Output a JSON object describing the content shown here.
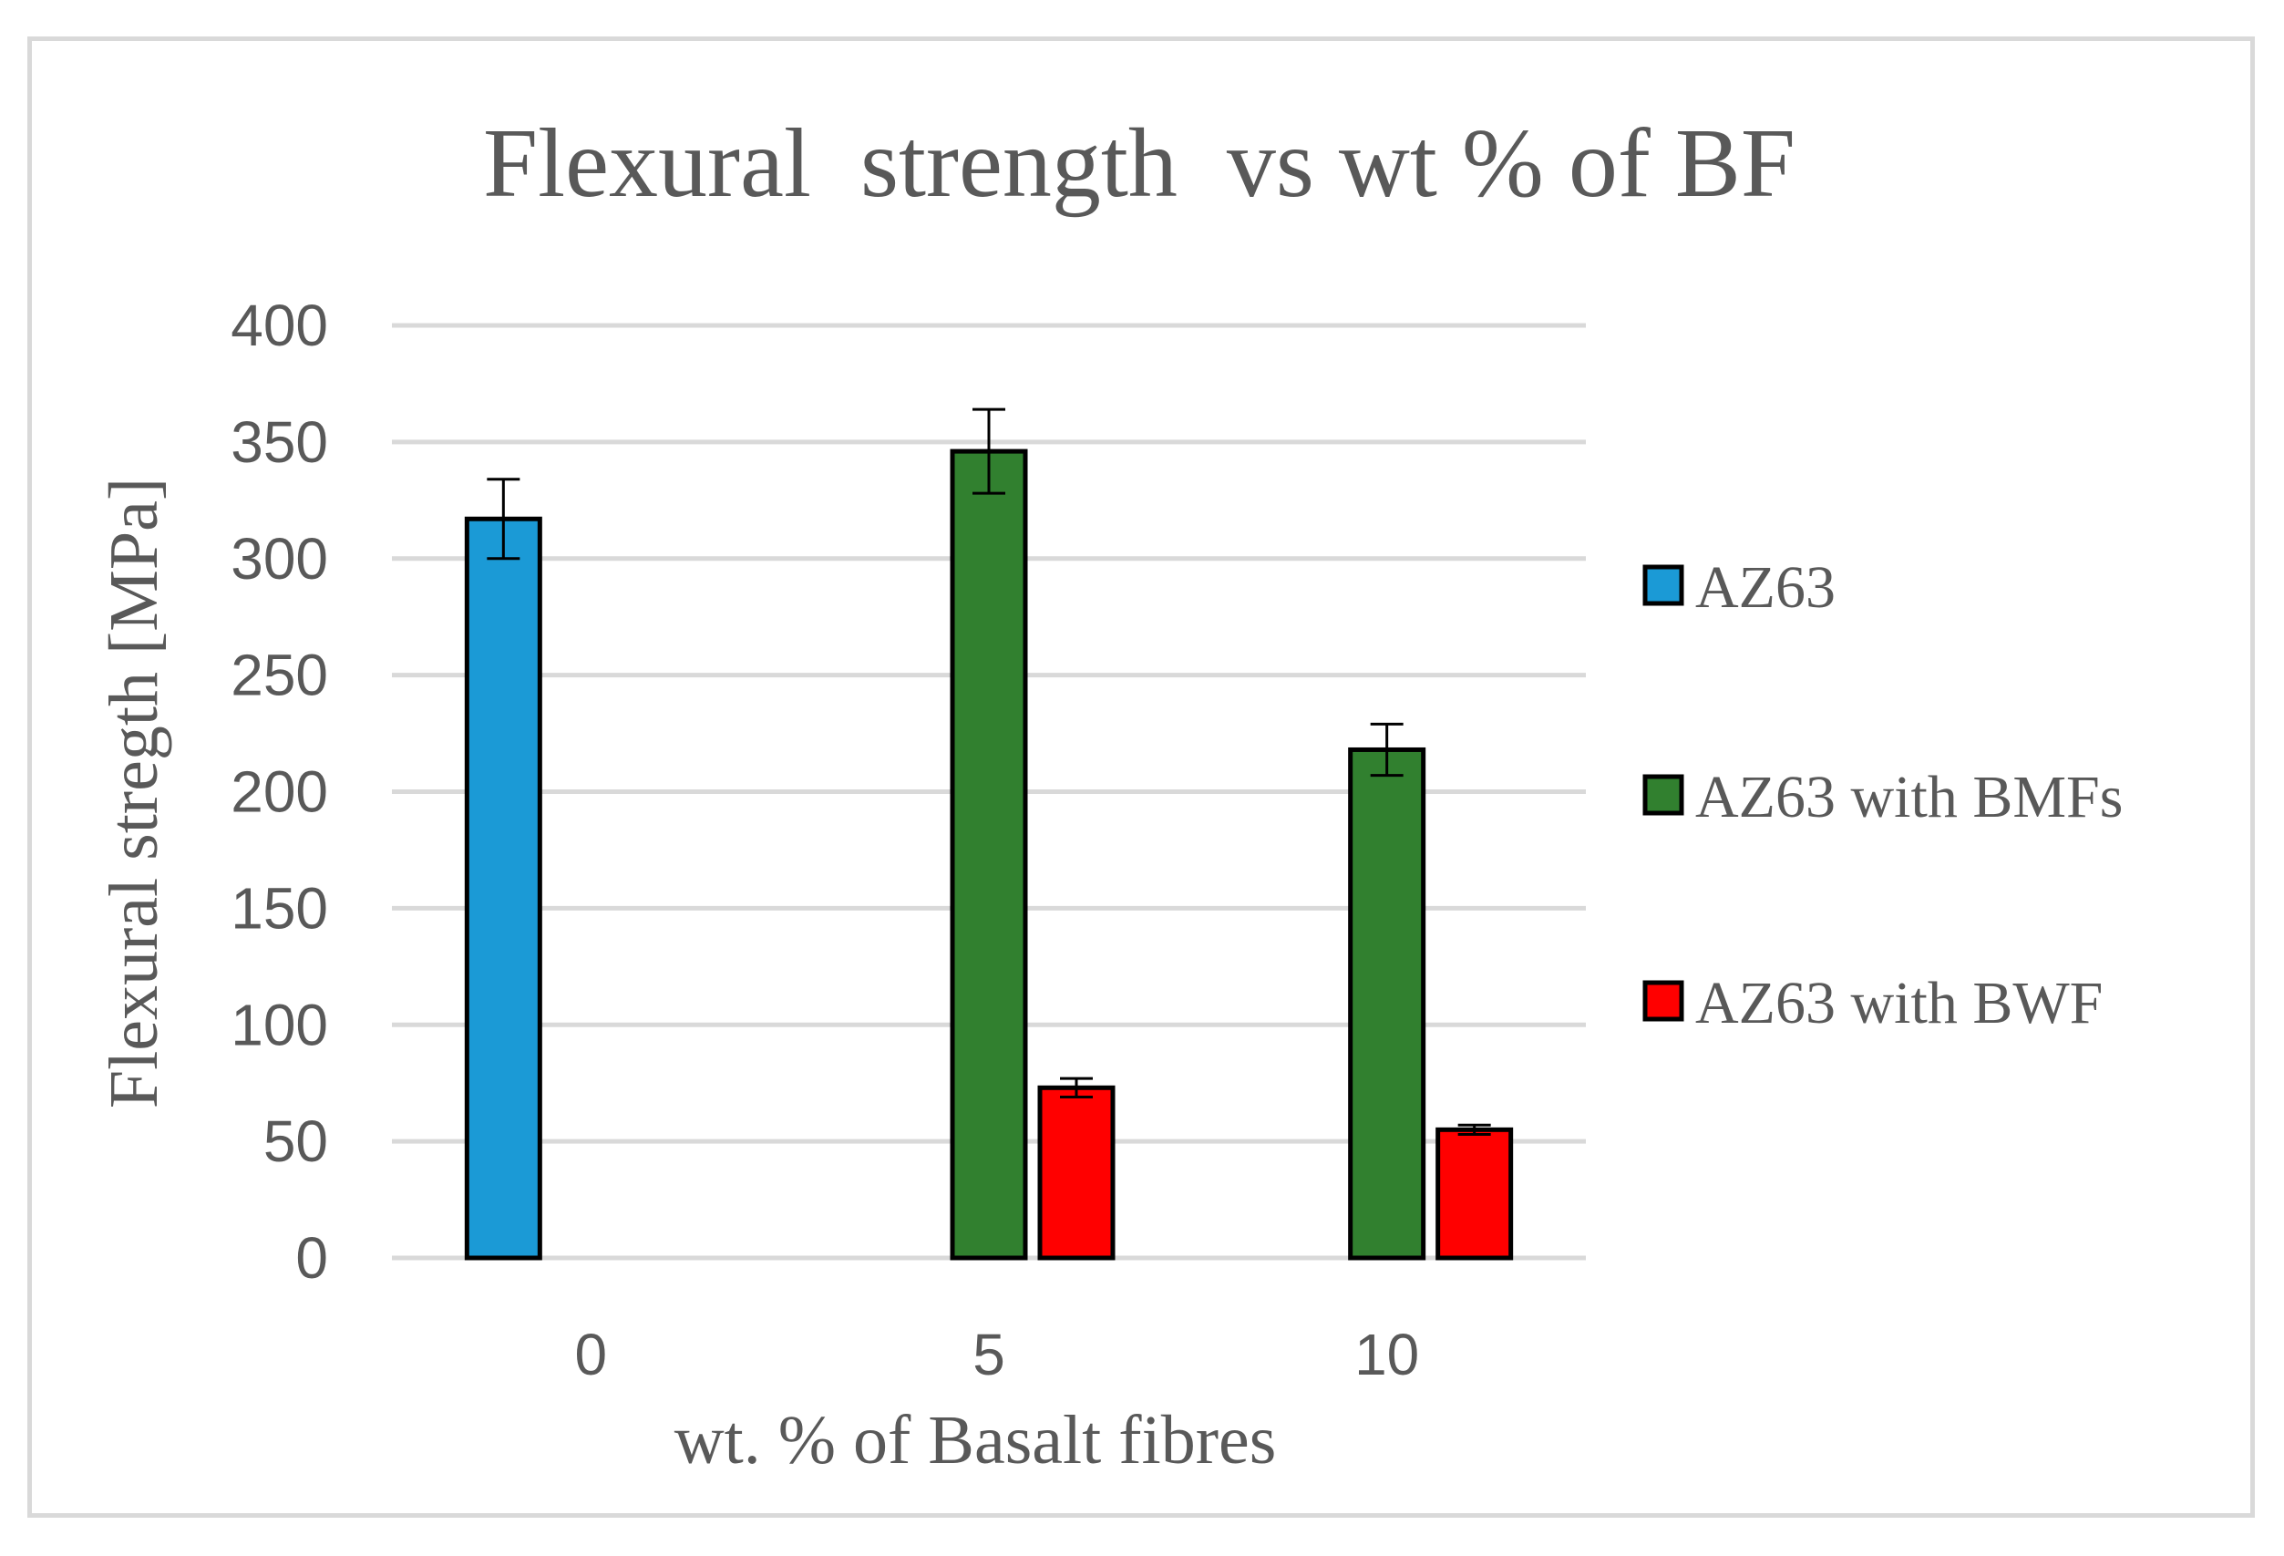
{
  "chart_data": {
    "type": "bar",
    "title": "Flexural  strength  vs wt % of BF",
    "xlabel": "wt. % of Basalt fibres",
    "ylabel": "Flexural stregth [MPa]",
    "categories": [
      "0",
      "5",
      "10"
    ],
    "ylim": [
      0,
      400
    ],
    "yticks": [
      "0",
      "50",
      "100",
      "150",
      "200",
      "250",
      "300",
      "350",
      "400"
    ],
    "grid": true,
    "legend_position": "right",
    "series": [
      {
        "name": "AZ63",
        "color": "#1b9ad6",
        "values": [
          317,
          null,
          null
        ],
        "errors": [
          17,
          null,
          null
        ]
      },
      {
        "name": "AZ63 with BMFs",
        "color": "#31802f",
        "values": [
          null,
          346,
          218
        ],
        "errors": [
          null,
          18,
          11
        ]
      },
      {
        "name": "AZ63 with BWF",
        "color": "#ff0000",
        "values": [
          null,
          73,
          55
        ],
        "errors": [
          null,
          4,
          2
        ]
      }
    ]
  }
}
